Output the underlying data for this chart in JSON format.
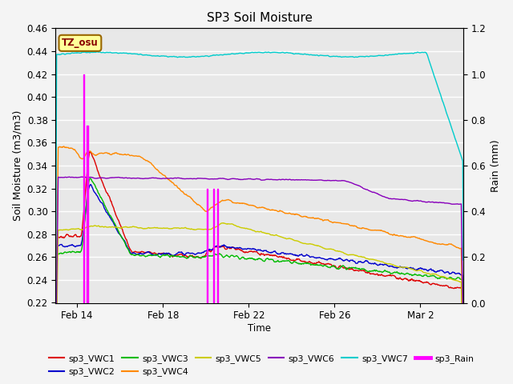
{
  "title": "SP3 Soil Moisture",
  "ylabel_left": "Soil Moisture (m3/m3)",
  "ylabel_right": "Rain (mm)",
  "xlabel": "Time",
  "ylim_left": [
    0.22,
    0.46
  ],
  "ylim_right": [
    0.0,
    1.2
  ],
  "background_color": "#e8e8e8",
  "grid_color": "#ffffff",
  "tz_label": "TZ_osu",
  "tz_bg": "#ffff99",
  "tz_border": "#996600",
  "colors": {
    "vwc1": "#dd0000",
    "vwc2": "#0000cc",
    "vwc3": "#00bb00",
    "vwc4": "#ff8800",
    "vwc5": "#cccc00",
    "vwc6": "#8800bb",
    "vwc7": "#00cccc",
    "rain": "#ff00ff"
  },
  "xtick_labels": [
    "Feb 14",
    "Feb 18",
    "Feb 22",
    "Feb 26",
    "Mar 2"
  ],
  "xtick_days": [
    1,
    5,
    9,
    13,
    17
  ],
  "n_days": 19,
  "n_points": 800
}
